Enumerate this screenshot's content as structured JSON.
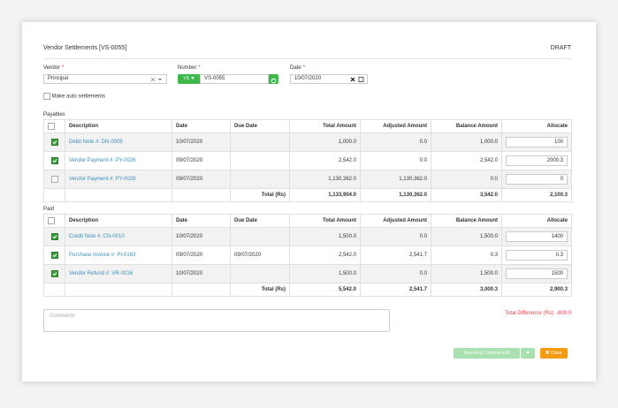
{
  "header": {
    "title": "Vendor Settlements [VS-0055]",
    "status": "DRAFT"
  },
  "form": {
    "vendor": {
      "label": "Vendor",
      "required": "*",
      "value": "Principal"
    },
    "number": {
      "label": "Number",
      "required": "*",
      "prefix": "VS",
      "value": "VS-0055"
    },
    "date": {
      "label": "Date",
      "required": "*",
      "value": "10/07/2020"
    },
    "auto_settlements": "Make auto settlements"
  },
  "payables": {
    "title": "Payables",
    "columns": [
      "Description",
      "Date",
      "Due Date",
      "Total Amount",
      "Adjusted Amount",
      "Balance Amount",
      "Allocate"
    ],
    "rows": [
      {
        "checked": true,
        "cells": [
          "Debit Note #: DN-0005",
          "10/07/2020",
          null,
          "1,000.0",
          "0.0",
          "1,000.0"
        ],
        "allocate": "100"
      },
      {
        "checked": true,
        "cells": [
          "Vendor Payment #: PY-0026",
          "09/07/2020",
          null,
          "2,542.0",
          "0.0",
          "2,542.0"
        ],
        "allocate": "2000.3"
      },
      {
        "checked": false,
        "cells": [
          "Vendor Payment #: PY-0029",
          "09/07/2020",
          null,
          "1,130,362.0",
          "1,130,362.0",
          "0.0"
        ],
        "allocate": "0"
      }
    ],
    "total": {
      "label": "Total (Rs)",
      "values": [
        "1,133,904.0",
        "1,130,362.0",
        "3,542.0",
        "2,100.3"
      ]
    }
  },
  "paid": {
    "title": "Paid",
    "columns": [
      "Description",
      "Date",
      "Due Date",
      "Total Amount",
      "Adjusted Amount",
      "Balance Amount",
      "Allocate"
    ],
    "rows": [
      {
        "checked": true,
        "cells": [
          "Credit Note #: CN-0010",
          "10/07/2020",
          null,
          "1,500.0",
          "0.0",
          "1,500.0"
        ],
        "allocate": "1400"
      },
      {
        "checked": true,
        "cells": [
          "Purchase Invoice #: PI-0163",
          "09/07/2020",
          "09/07/2020",
          "2,542.0",
          "2,541.7",
          "0.3"
        ],
        "allocate": "0.3"
      },
      {
        "checked": true,
        "cells": [
          "Vendor Refund #: VR-0016",
          "10/07/2020",
          null,
          "1,500.0",
          "0.0",
          "1,500.0"
        ],
        "allocate": "1500"
      }
    ],
    "total": {
      "label": "Total (Rs)",
      "values": [
        "5,542.0",
        "2,541.7",
        "3,000.3",
        "2,900.3"
      ]
    }
  },
  "footer": {
    "comments_placeholder": "Comments",
    "total_difference": "Total Difference (Rs): -800.0",
    "save_button": "Save And Continue Edit",
    "close_button": "Close"
  }
}
